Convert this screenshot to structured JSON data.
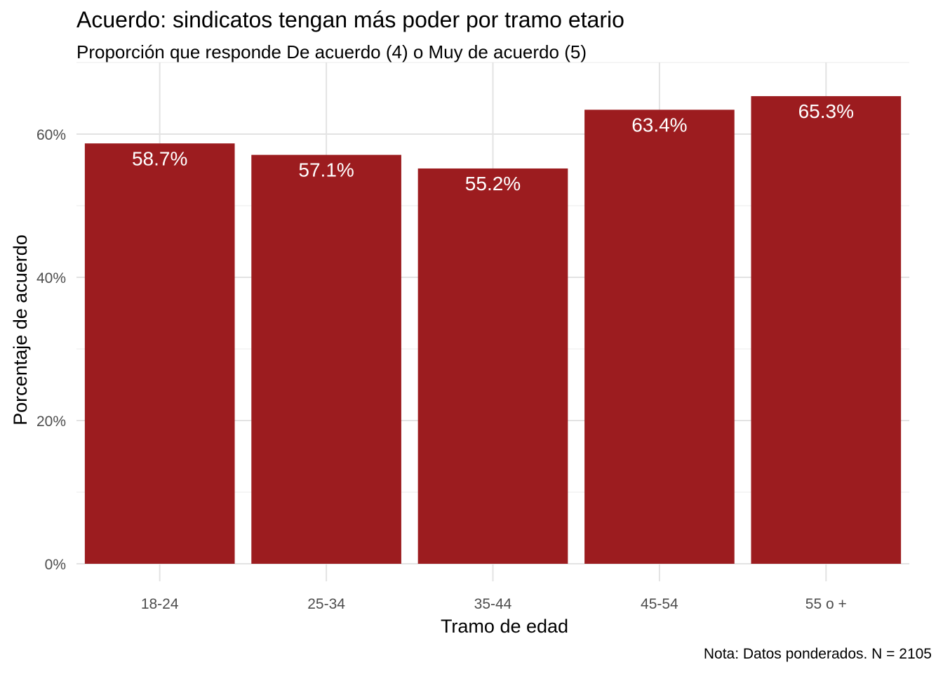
{
  "chart_data": {
    "type": "bar",
    "title": "Acuerdo: sindicatos tengan más poder por tramo etario",
    "subtitle": "Proporción que responde De acuerdo (4) o Muy de acuerdo (5)",
    "caption": "Nota: Datos ponderados. N = 2105",
    "xlabel": "Tramo de edad",
    "ylabel": "Porcentaje de acuerdo",
    "categories": [
      "18-24",
      "25-34",
      "35-44",
      "45-54",
      "55 o +"
    ],
    "values": [
      58.7,
      57.1,
      55.2,
      63.4,
      65.3
    ],
    "data_labels": [
      "58.7%",
      "57.1%",
      "55.2%",
      "63.4%",
      "65.3%"
    ],
    "ylim": [
      0,
      70
    ],
    "yticks": [
      0,
      20,
      40,
      60
    ],
    "ytick_labels": [
      "0%",
      "20%",
      "40%",
      "60%"
    ],
    "bar_color": "#9C1C1F",
    "grid": true,
    "legend": "none"
  }
}
